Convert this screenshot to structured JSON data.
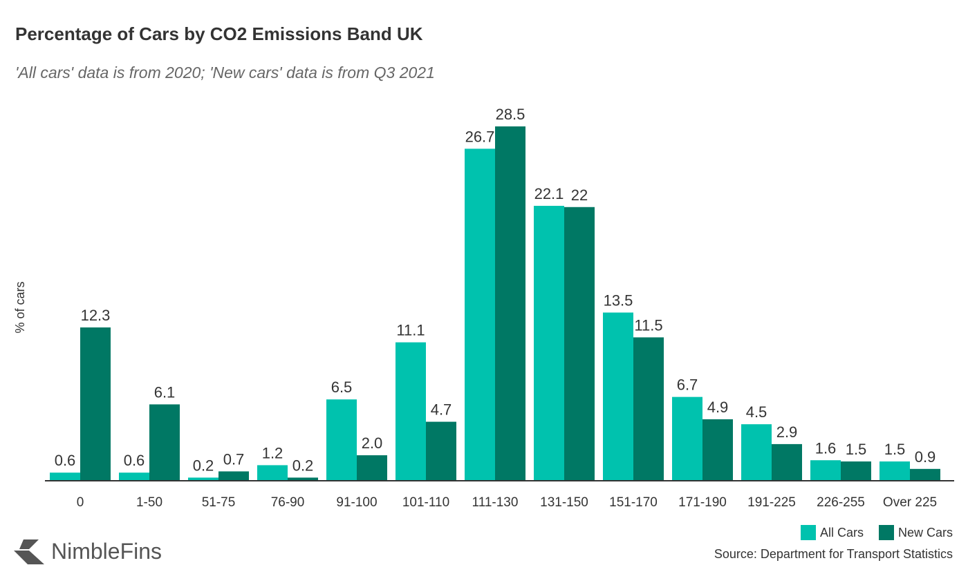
{
  "chart_data": {
    "type": "bar",
    "title": "Percentage of Cars by CO2 Emissions Band UK",
    "subtitle": "'All cars' data is from 2020; 'New cars' data is from Q3 2021",
    "xlabel": "",
    "ylabel": "% of cars",
    "ylim": [
      0,
      30
    ],
    "grid": false,
    "legend_position": "bottom-right",
    "categories": [
      "0",
      "1-50",
      "51-75",
      "76-90",
      "91-100",
      "101-110",
      "111-130",
      "131-150",
      "151-170",
      "171-190",
      "191-225",
      "226-255",
      "Over 225"
    ],
    "series": [
      {
        "name": "All Cars",
        "color": "#00C2AE",
        "values": [
          0.6,
          0.6,
          0.2,
          1.2,
          6.5,
          11.1,
          26.7,
          22.1,
          13.5,
          6.7,
          4.5,
          1.6,
          1.5
        ],
        "labels": [
          "0.6",
          "0.6",
          "0.2",
          "1.2",
          "6.5",
          "11.1",
          "26.7",
          "22.1",
          "13.5",
          "6.7",
          "4.5",
          "1.6",
          "1.5"
        ]
      },
      {
        "name": "New Cars",
        "color": "#007864",
        "values": [
          12.3,
          6.1,
          0.7,
          0.2,
          2.0,
          4.7,
          28.5,
          22,
          11.5,
          4.9,
          2.9,
          1.5,
          0.9
        ],
        "labels": [
          "12.3",
          "6.1",
          "0.7",
          "0.2",
          "2.0",
          "4.7",
          "28.5",
          "22",
          "11.5",
          "4.9",
          "2.9",
          "1.5",
          "0.9"
        ]
      }
    ],
    "source": "Source: Department for Transport Statistics"
  },
  "brand": "NimbleFins"
}
